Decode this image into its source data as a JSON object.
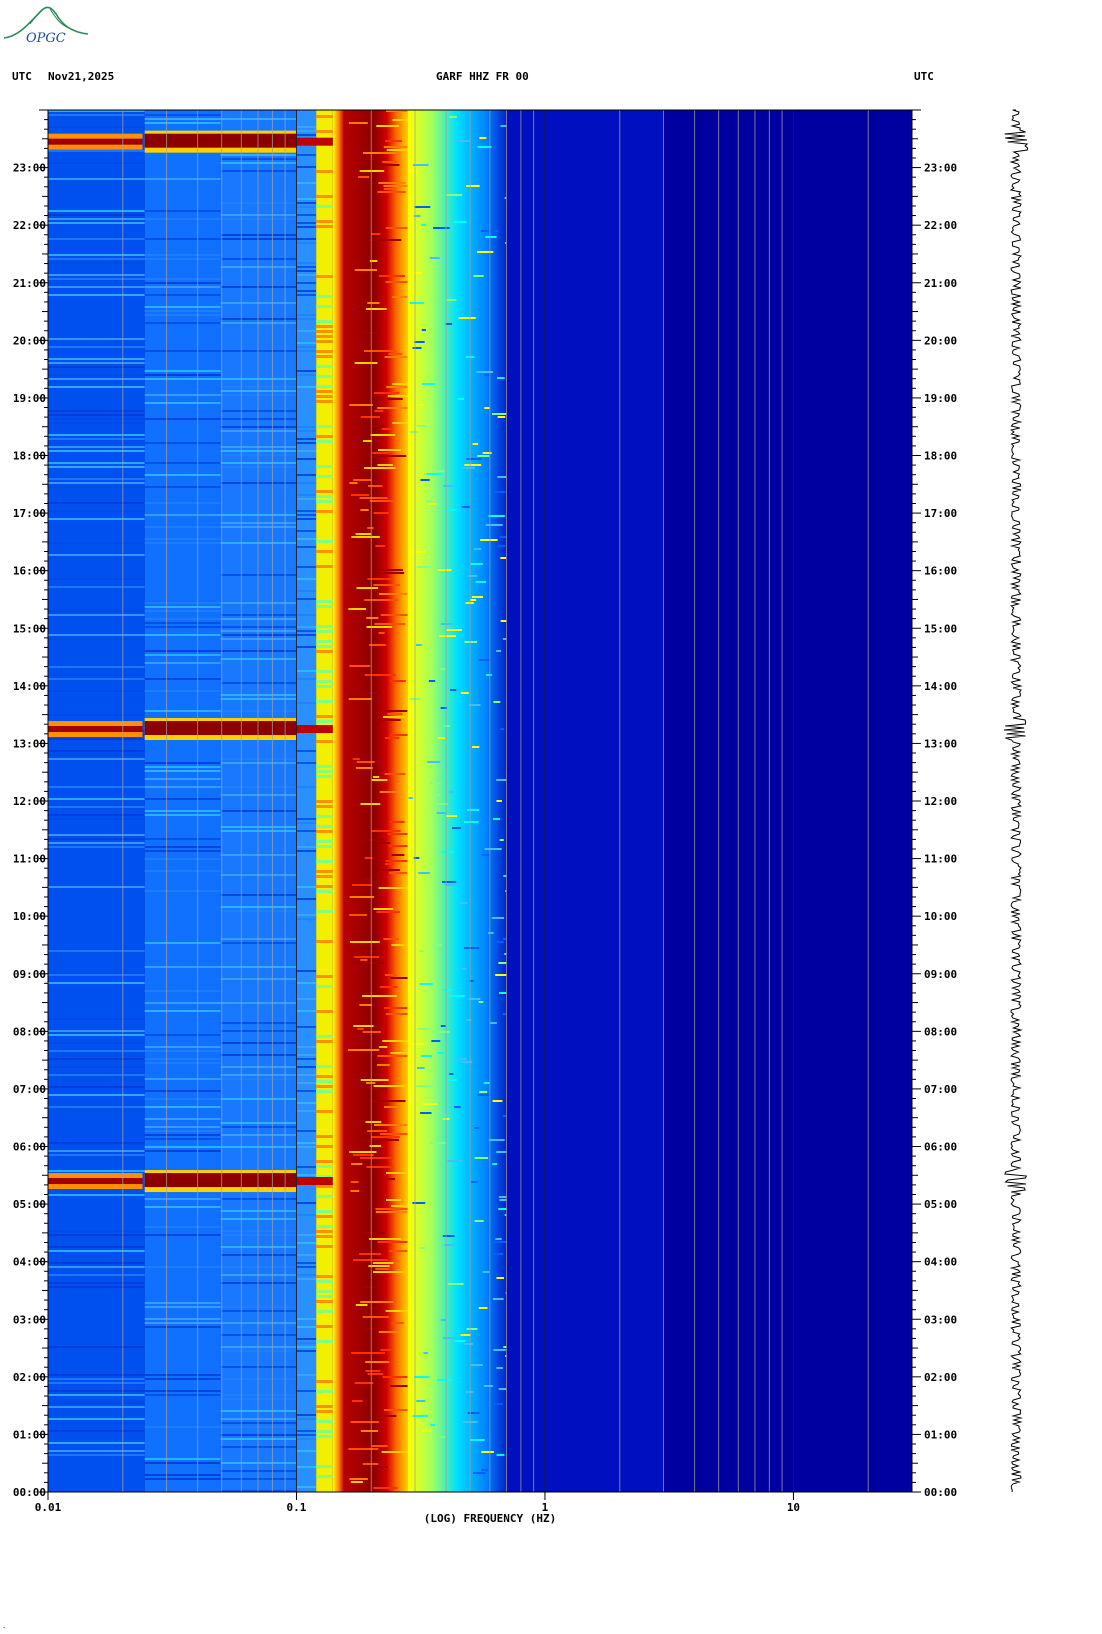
{
  "header": {
    "left_tz": "UTC",
    "date": "Nov21,2025",
    "station": "GARF HHZ FR 00",
    "right_tz": "UTC"
  },
  "logo": {
    "text": "OPGC"
  },
  "chart_data": {
    "type": "heatmap",
    "title": "GARF HHZ FR 00",
    "xlabel": "(LOG) FREQUENCY (HZ)",
    "ylabel": "",
    "x_scale": "log",
    "x_range": [
      0.01,
      30
    ],
    "x_ticks": [
      {
        "value": 0.01,
        "label": "0.01"
      },
      {
        "value": 0.1,
        "label": "0.1"
      },
      {
        "value": 1,
        "label": "1"
      },
      {
        "value": 10,
        "label": "10"
      }
    ],
    "y_range_hours": [
      0,
      24
    ],
    "y_ticks": [
      "00:00",
      "01:00",
      "02:00",
      "03:00",
      "04:00",
      "05:00",
      "06:00",
      "07:00",
      "08:00",
      "09:00",
      "10:00",
      "11:00",
      "12:00",
      "13:00",
      "14:00",
      "15:00",
      "16:00",
      "17:00",
      "18:00",
      "19:00",
      "20:00",
      "21:00",
      "22:00",
      "23:00"
    ],
    "colormap": [
      "#0000a0",
      "#0040ff",
      "#00c8ff",
      "#ffff00",
      "#ff6a00",
      "#c80000",
      "#8c0000"
    ],
    "microseism_band_hz": [
      0.14,
      0.28
    ],
    "events_utc_hours": [
      5.4,
      13.25,
      23.45
    ]
  }
}
